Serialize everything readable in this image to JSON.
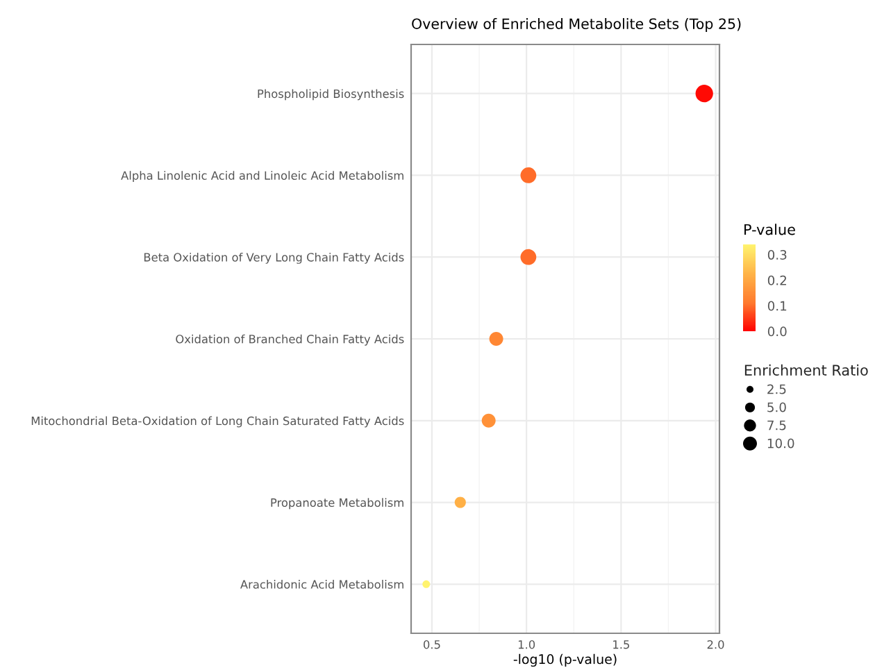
{
  "chart_data": {
    "type": "bubble",
    "title": "Overview of Enriched Metabolite Sets (Top 25)",
    "xlabel": "-log10 (p-value)",
    "clabel": "P-value",
    "legend_title": "Enrichment Ratio",
    "orientation": "horizontal",
    "categories": [
      "Phospholipid Biosynthesis",
      "Alpha Linolenic Acid and Linoleic Acid Metabolism",
      "Beta Oxidation of Very Long Chain Fatty Acids",
      "Oxidation of Branched Chain Fatty Acids",
      "Mitochondrial Beta-Oxidation of Long Chain Saturated Fatty Acids",
      "Propanoate Metabolism",
      "Arachidonic Acid Metabolism"
    ],
    "values": [
      1.94,
      1.01,
      1.01,
      0.84,
      0.8,
      0.65,
      0.47
    ],
    "sizes": [
      16,
      13,
      13,
      10,
      10,
      6.5,
      3
    ],
    "cvalues": [
      0.01,
      0.1,
      0.1,
      0.14,
      0.16,
      0.22,
      0.34
    ],
    "size_legend": [
      2.5,
      {
        "value": 5,
        "label": "5.0"
      },
      7.5,
      {
        "value": 10,
        "label": "10.0"
      }
    ],
    "clim": [
      0,
      0.34
    ],
    "cticks": [
      {
        "value": 0,
        "label": "0.0"
      },
      0.1,
      0.2,
      0.3
    ],
    "xlim": [
      0.39,
      2.02
    ],
    "xticks": [
      0.5,
      {
        "value": 1,
        "label": "1.0"
      },
      1.5,
      {
        "value": 2,
        "label": "2.0"
      }
    ],
    "grid": true
  }
}
